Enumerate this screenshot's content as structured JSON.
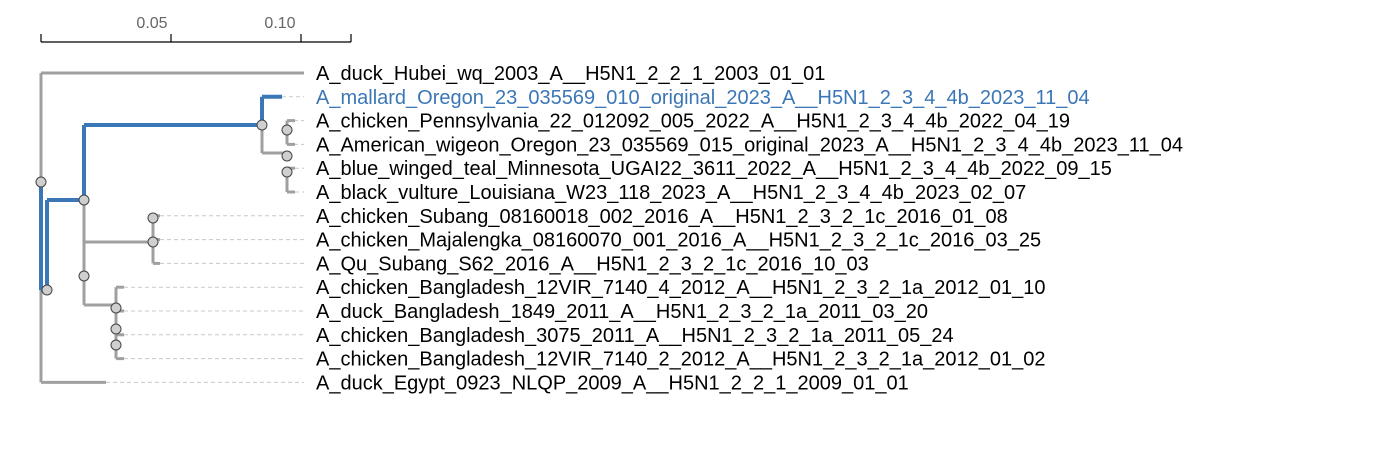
{
  "colors": {
    "branch": "#a0a0a0",
    "highlight": "#3b77b6",
    "guide": "#c8c8c8",
    "node_fill": "#cfcfcf",
    "node_stroke": "#444444",
    "label": "#000000",
    "scale": "#000000",
    "tick_label": "#666666"
  },
  "scale_bar": {
    "ticks": [
      "0.05",
      "0.10"
    ]
  },
  "tree": {
    "leaves": [
      {
        "label": "A_duck_Hubei_wq_2003_A__H5N1_2_2_1_2003_01_01",
        "highlight": false
      },
      {
        "label": "A_mallard_Oregon_23_035569_010_original_2023_A__H5N1_2_3_4_4b_2023_11_04",
        "highlight": true
      },
      {
        "label": "A_chicken_Pennsylvania_22_012092_005_2022_A__H5N1_2_3_4_4b_2022_04_19",
        "highlight": false
      },
      {
        "label": "A_American_wigeon_Oregon_23_035569_015_original_2023_A__H5N1_2_3_4_4b_2023_11_04",
        "highlight": false
      },
      {
        "label": "A_blue_winged_teal_Minnesota_UGAI22_3611_2022_A__H5N1_2_3_4_4b_2022_09_15",
        "highlight": false
      },
      {
        "label": "A_black_vulture_Louisiana_W23_118_2023_A__H5N1_2_3_4_4b_2023_02_07",
        "highlight": false
      },
      {
        "label": "A_chicken_Subang_08160018_002_2016_A__H5N1_2_3_2_1c_2016_01_08",
        "highlight": false
      },
      {
        "label": "A_chicken_Majalengka_08160070_001_2016_A__H5N1_2_3_2_1c_2016_03_25",
        "highlight": false
      },
      {
        "label": "A_Qu_Subang_S62_2016_A__H5N1_2_3_2_1c_2016_10_03",
        "highlight": false
      },
      {
        "label": "A_chicken_Bangladesh_12VIR_7140_4_2012_A__H5N1_2_3_2_1a_2012_01_10",
        "highlight": false
      },
      {
        "label": "A_duck_Bangladesh_1849_2011_A__H5N1_2_3_2_1a_2011_03_20",
        "highlight": false
      },
      {
        "label": "A_chicken_Bangladesh_3075_2011_A__H5N1_2_3_2_1a_2011_05_24",
        "highlight": false
      },
      {
        "label": "A_chicken_Bangladesh_12VIR_7140_2_2012_A__H5N1_2_3_2_1a_2012_01_02",
        "highlight": false
      },
      {
        "label": "A_duck_Egypt_0923_NLQP_2009_A__H5N1_2_2_1_2009_01_01",
        "highlight": false
      }
    ]
  }
}
